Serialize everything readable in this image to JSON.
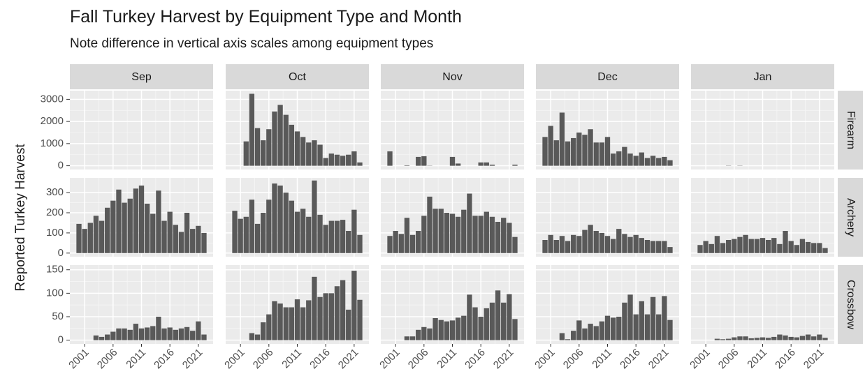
{
  "chart_data": {
    "type": "bar",
    "title": "Fall Turkey Harvest by Equipment Type and Month",
    "subtitle": "Note difference in vertical axis scales among equipment types",
    "y_label": "Reported Turkey Harvest",
    "color": "#595959",
    "grid": true,
    "columns": [
      "Sep",
      "Oct",
      "Nov",
      "Dec",
      "Jan"
    ],
    "x": [
      2000,
      2001,
      2002,
      2003,
      2004,
      2005,
      2006,
      2007,
      2008,
      2009,
      2010,
      2011,
      2012,
      2013,
      2014,
      2015,
      2016,
      2017,
      2018,
      2019,
      2020,
      2021,
      2022
    ],
    "xlim": [
      1998.4,
      2023.6
    ],
    "xticks": [
      2001,
      2006,
      2011,
      2016,
      2021
    ],
    "rows": [
      {
        "name": "Firearm",
        "ylim": [
          -170,
          3390
        ],
        "yticks": [
          0,
          1000,
          2000,
          3000
        ],
        "values": [
          [
            null,
            null,
            null,
            null,
            null,
            null,
            null,
            null,
            null,
            null,
            null,
            null,
            null,
            null,
            null,
            null,
            null,
            null,
            null,
            null,
            null,
            null,
            null
          ],
          [
            null,
            null,
            1100,
            3250,
            1700,
            1150,
            1650,
            2450,
            2750,
            2300,
            1850,
            1550,
            1300,
            1050,
            1150,
            950,
            350,
            550,
            500,
            450,
            500,
            650,
            150
          ],
          [
            650,
            null,
            null,
            20,
            null,
            400,
            430,
            10,
            null,
            null,
            null,
            400,
            100,
            null,
            null,
            null,
            150,
            150,
            50,
            null,
            null,
            null,
            50
          ],
          [
            1300,
            1800,
            1150,
            2400,
            1100,
            1250,
            1500,
            1400,
            1650,
            1050,
            1050,
            1300,
            550,
            650,
            850,
            550,
            450,
            600,
            350,
            450,
            350,
            400,
            250
          ],
          [
            null,
            null,
            null,
            null,
            null,
            10,
            null,
            10,
            null,
            null,
            null,
            null,
            null,
            null,
            null,
            null,
            null,
            null,
            null,
            null,
            null,
            null,
            null
          ]
        ]
      },
      {
        "name": "Archery",
        "ylim": [
          -18,
          373
        ],
        "yticks": [
          0,
          100,
          200,
          300
        ],
        "values": [
          [
            145,
            120,
            150,
            185,
            160,
            225,
            260,
            315,
            250,
            270,
            320,
            335,
            245,
            195,
            310,
            160,
            205,
            140,
            105,
            200,
            120,
            135,
            100
          ],
          [
            210,
            170,
            180,
            265,
            145,
            200,
            265,
            345,
            335,
            300,
            260,
            205,
            220,
            180,
            360,
            190,
            140,
            160,
            160,
            165,
            110,
            215,
            90
          ],
          [
            85,
            110,
            95,
            175,
            90,
            110,
            185,
            280,
            220,
            220,
            200,
            195,
            180,
            215,
            295,
            185,
            185,
            205,
            180,
            155,
            175,
            150,
            80
          ],
          [
            65,
            90,
            65,
            85,
            60,
            90,
            85,
            115,
            140,
            110,
            100,
            85,
            70,
            120,
            95,
            80,
            90,
            75,
            65,
            60,
            60,
            60,
            30
          ],
          [
            40,
            60,
            45,
            85,
            50,
            65,
            70,
            80,
            90,
            70,
            70,
            75,
            65,
            75,
            45,
            110,
            60,
            40,
            70,
            55,
            50,
            50,
            25
          ]
        ]
      },
      {
        "name": "Crossbow",
        "ylim": [
          -8,
          160
        ],
        "yticks": [
          0,
          50,
          100,
          150
        ],
        "values": [
          [
            null,
            null,
            null,
            10,
            7,
            12,
            18,
            25,
            25,
            22,
            35,
            25,
            27,
            30,
            50,
            25,
            27,
            22,
            25,
            28,
            20,
            40,
            12
          ],
          [
            null,
            null,
            null,
            15,
            12,
            38,
            55,
            83,
            78,
            70,
            70,
            87,
            70,
            85,
            135,
            92,
            100,
            100,
            115,
            128,
            65,
            148,
            86
          ],
          [
            null,
            null,
            null,
            8,
            8,
            22,
            28,
            25,
            47,
            43,
            40,
            42,
            48,
            52,
            97,
            70,
            50,
            68,
            80,
            106,
            80,
            98,
            45
          ],
          [
            null,
            null,
            null,
            15,
            2,
            20,
            42,
            25,
            35,
            30,
            40,
            52,
            48,
            50,
            80,
            97,
            55,
            83,
            55,
            92,
            55,
            94,
            43
          ],
          [
            null,
            null,
            null,
            3,
            2,
            3,
            6,
            8,
            8,
            4,
            5,
            6,
            5,
            7,
            12,
            10,
            7,
            6,
            9,
            12,
            8,
            12,
            5
          ]
        ]
      }
    ]
  }
}
